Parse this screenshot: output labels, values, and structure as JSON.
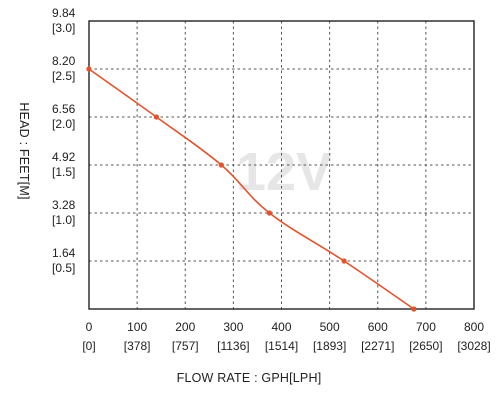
{
  "chart_data": {
    "type": "line",
    "title": "",
    "watermark": "12V",
    "xlabel": "FLOW RATE : GPH[LPH]",
    "ylabel": "HEAD : FEET[M]",
    "xlim": [
      0,
      800
    ],
    "ylim": [
      0,
      9.84
    ],
    "grid": true,
    "x_ticks": [
      {
        "value": 0,
        "label": "0",
        "sub": "[0]"
      },
      {
        "value": 100,
        "label": "100",
        "sub": "[378]"
      },
      {
        "value": 200,
        "label": "200",
        "sub": "[757]"
      },
      {
        "value": 300,
        "label": "300",
        "sub": "[1136]"
      },
      {
        "value": 400,
        "label": "400",
        "sub": "[1514]"
      },
      {
        "value": 500,
        "label": "500",
        "sub": "[1893]"
      },
      {
        "value": 600,
        "label": "600",
        "sub": "[2271]"
      },
      {
        "value": 700,
        "label": "700",
        "sub": "[2650]"
      },
      {
        "value": 800,
        "label": "800",
        "sub": "[3028]"
      }
    ],
    "y_ticks": [
      {
        "value": 9.84,
        "label": "9.84",
        "sub": "[3.0]"
      },
      {
        "value": 8.2,
        "label": "8.20",
        "sub": "[2.5]"
      },
      {
        "value": 6.56,
        "label": "6.56",
        "sub": "[2.0]"
      },
      {
        "value": 4.92,
        "label": "4.92",
        "sub": "[1.5]"
      },
      {
        "value": 3.28,
        "label": "3.28",
        "sub": "[1.0]"
      },
      {
        "value": 1.64,
        "label": "1.64",
        "sub": "[0.5]"
      }
    ],
    "series": [
      {
        "color": "#e2522b",
        "x": [
          0,
          140,
          275,
          375,
          530,
          675
        ],
        "y": [
          8.2,
          6.56,
          4.92,
          3.28,
          1.64,
          0
        ]
      }
    ]
  }
}
